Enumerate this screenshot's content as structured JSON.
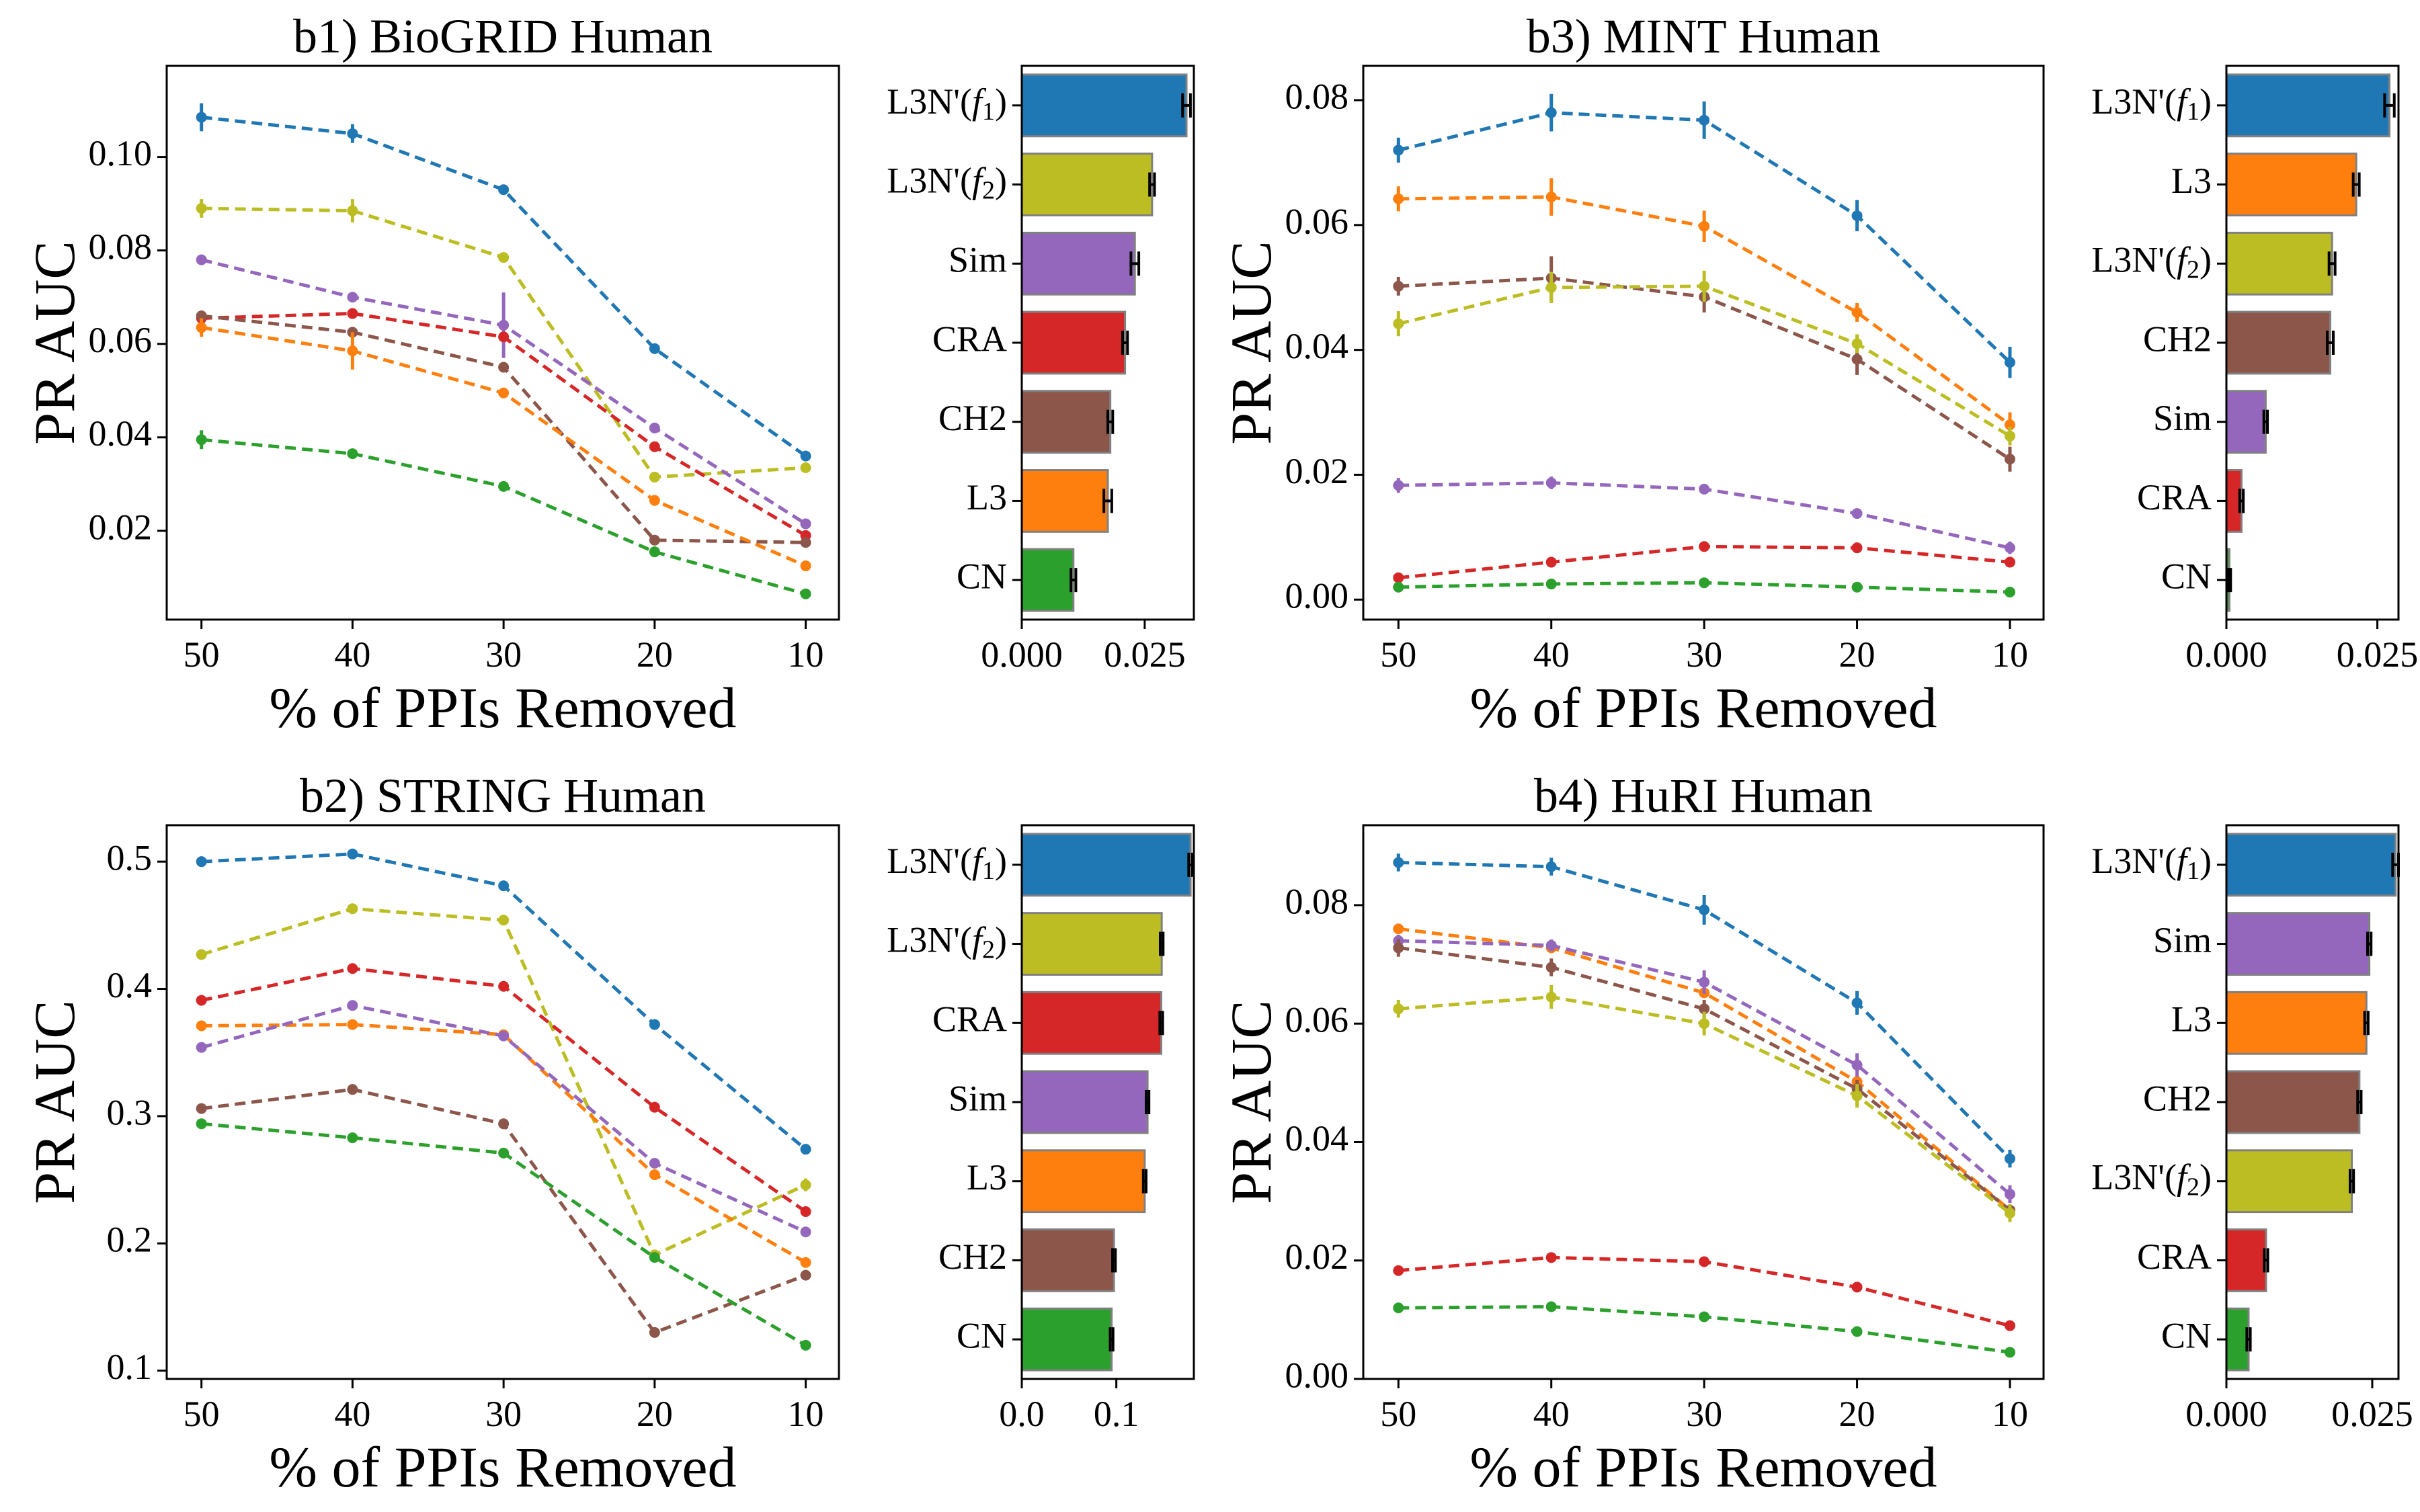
{
  "colors": {
    "L3N'(f1)": "#1f77b4",
    "L3": "#ff7f0e",
    "CN": "#2ca02c",
    "CRA": "#d62728",
    "Sim": "#9467bd",
    "CH2": "#8c564b",
    "L3N'(f2)": "#bcbd22"
  },
  "chart_data": [
    {
      "id": "b1",
      "type": "line",
      "title": "b1) BioGRID Human",
      "xlabel": "% of PPIs Removed",
      "ylabel": "PR AUC",
      "x": [
        50,
        40,
        30,
        20,
        10
      ],
      "xlim": [
        52.3,
        7.8
      ],
      "ylim": [
        0.001,
        0.1195
      ],
      "yticks": [
        0.02,
        0.04,
        0.06,
        0.08,
        0.1
      ],
      "ytick_labels": [
        "0.02",
        "0.04",
        "0.06",
        "0.08",
        "0.10"
      ],
      "series": [
        {
          "method": "L3N'(f1)",
          "values": [
            0.1085,
            0.105,
            0.093,
            0.059,
            0.036
          ],
          "errors": [
            0.003,
            0.002,
            0.001,
            0.0005,
            0.0005
          ]
        },
        {
          "method": "L3N'(f2)",
          "values": [
            0.089,
            0.0885,
            0.0785,
            0.0315,
            0.0335
          ],
          "errors": [
            0.002,
            0.0025,
            0.0005,
            0.0005,
            0.001
          ]
        },
        {
          "method": "Sim",
          "values": [
            0.078,
            0.07,
            0.064,
            0.042,
            0.0215
          ],
          "errors": [
            0.0005,
            0.0005,
            0.007,
            0.001,
            0.001
          ]
        },
        {
          "method": "CRA",
          "values": [
            0.0655,
            0.0665,
            0.0615,
            0.038,
            0.019
          ],
          "errors": [
            0.001,
            0.0005,
            0.0005,
            0.0005,
            0.0005
          ]
        },
        {
          "method": "CH2",
          "values": [
            0.066,
            0.0625,
            0.055,
            0.018,
            0.0175
          ],
          "errors": [
            0.0005,
            0.0005,
            0.0005,
            0.0005,
            0.0005
          ]
        },
        {
          "method": "L3",
          "values": [
            0.0635,
            0.0585,
            0.0495,
            0.0265,
            0.0125
          ],
          "errors": [
            0.002,
            0.004,
            0.0005,
            0.001,
            0.0005
          ]
        },
        {
          "method": "CN",
          "values": [
            0.0395,
            0.0365,
            0.0295,
            0.0155,
            0.0065
          ],
          "errors": [
            0.002,
            0.0005,
            0.0005,
            0.0005,
            0.0005
          ]
        }
      ]
    },
    {
      "id": "b1-bars",
      "type": "bar",
      "orientation": "horizontal",
      "categories": [
        "L3N'(f1)",
        "L3N'(f2)",
        "Sim",
        "CRA",
        "CH2",
        "L3",
        "CN"
      ],
      "values": [
        0.0335,
        0.0265,
        0.023,
        0.021,
        0.018,
        0.0175,
        0.0105
      ],
      "errors": [
        0.0008,
        0.0005,
        0.0008,
        0.0005,
        0.0005,
        0.0008,
        0.0005
      ],
      "xlim": [
        0,
        0.035
      ],
      "xticks": [
        0.0,
        0.025
      ],
      "xtick_labels": [
        "0.000",
        "0.025"
      ]
    },
    {
      "id": "b3",
      "type": "line",
      "title": "b3) MINT Human",
      "xlabel": "% of PPIs Removed",
      "ylabel": "PR AUC",
      "x": [
        50,
        40,
        30,
        20,
        10
      ],
      "xlim": [
        52.3,
        7.8
      ],
      "ylim": [
        -0.0032,
        0.0855
      ],
      "yticks": [
        0.0,
        0.02,
        0.04,
        0.06,
        0.08
      ],
      "ytick_labels": [
        "0.00",
        "0.02",
        "0.04",
        "0.06",
        "0.08"
      ],
      "series": [
        {
          "method": "L3N'(f1)",
          "values": [
            0.072,
            0.078,
            0.0768,
            0.0615,
            0.038
          ],
          "errors": [
            0.002,
            0.003,
            0.003,
            0.0025,
            0.0025
          ]
        },
        {
          "method": "L3",
          "values": [
            0.0642,
            0.0645,
            0.0598,
            0.046,
            0.028
          ],
          "errors": [
            0.002,
            0.003,
            0.0025,
            0.0015,
            0.002
          ]
        },
        {
          "method": "CH2",
          "values": [
            0.0502,
            0.0515,
            0.0485,
            0.0385,
            0.0225
          ],
          "errors": [
            0.0015,
            0.0035,
            0.0025,
            0.0025,
            0.002
          ]
        },
        {
          "method": "L3N'(f2)",
          "values": [
            0.0442,
            0.05,
            0.0502,
            0.041,
            0.0262
          ],
          "errors": [
            0.002,
            0.0025,
            0.0025,
            0.0015,
            0.0015
          ]
        },
        {
          "method": "Sim",
          "values": [
            0.0183,
            0.0187,
            0.0177,
            0.0138,
            0.0083
          ],
          "errors": [
            0.0012,
            0.001,
            0.0008,
            0.0008,
            0.001
          ]
        },
        {
          "method": "CRA",
          "values": [
            0.0035,
            0.006,
            0.0085,
            0.0083,
            0.006
          ],
          "errors": [
            0.0003,
            0.0003,
            0.0003,
            0.0003,
            0.0003
          ]
        },
        {
          "method": "CN",
          "values": [
            0.002,
            0.0025,
            0.0027,
            0.002,
            0.0012
          ],
          "errors": [
            0.0002,
            0.0002,
            0.0002,
            0.0002,
            0.0002
          ]
        }
      ]
    },
    {
      "id": "b3-bars",
      "type": "bar",
      "orientation": "horizontal",
      "categories": [
        "L3N'(f1)",
        "L3",
        "L3N'(f2)",
        "CH2",
        "Sim",
        "CRA",
        "CN"
      ],
      "values": [
        0.027,
        0.0215,
        0.0175,
        0.0172,
        0.0065,
        0.0025,
        0.0005
      ],
      "errors": [
        0.0008,
        0.0005,
        0.0005,
        0.0005,
        0.0003,
        0.0003,
        0.0002
      ],
      "xlim": [
        0,
        0.0285
      ],
      "xticks": [
        0.0,
        0.025
      ],
      "xtick_labels": [
        "0.000",
        "0.025"
      ]
    },
    {
      "id": "b2",
      "type": "line",
      "title": "b2) STRING Human",
      "xlabel": "% of PPIs Removed",
      "ylabel": "PR AUC",
      "x": [
        50,
        40,
        30,
        20,
        10
      ],
      "xlim": [
        52.3,
        7.8
      ],
      "ylim": [
        0.0935,
        0.5286
      ],
      "yticks": [
        0.1,
        0.2,
        0.3,
        0.4,
        0.5
      ],
      "ytick_labels": [
        "0.1",
        "0.2",
        "0.3",
        "0.4",
        "0.5"
      ],
      "series": [
        {
          "method": "L3N'(f1)",
          "values": [
            0.5,
            0.506,
            0.481,
            0.372,
            0.274
          ],
          "errors": [
            0.002,
            0.002,
            0.002,
            0.002,
            0.002
          ]
        },
        {
          "method": "L3N'(f2)",
          "values": [
            0.427,
            0.463,
            0.454,
            0.191,
            0.246
          ],
          "errors": [
            0.002,
            0.002,
            0.002,
            0.002,
            0.005
          ]
        },
        {
          "method": "CRA",
          "values": [
            0.391,
            0.416,
            0.402,
            0.307,
            0.225
          ],
          "errors": [
            0.002,
            0.002,
            0.002,
            0.002,
            0.002
          ]
        },
        {
          "method": "L3",
          "values": [
            0.371,
            0.372,
            0.364,
            0.254,
            0.185
          ],
          "errors": [
            0.002,
            0.002,
            0.002,
            0.002,
            0.002
          ]
        },
        {
          "method": "Sim",
          "values": [
            0.354,
            0.387,
            0.363,
            0.263,
            0.209
          ],
          "errors": [
            0.002,
            0.002,
            0.002,
            0.002,
            0.002
          ]
        },
        {
          "method": "CH2",
          "values": [
            0.306,
            0.321,
            0.294,
            0.13,
            0.175
          ],
          "errors": [
            0.002,
            0.002,
            0.002,
            0.002,
            0.002
          ]
        },
        {
          "method": "CN",
          "values": [
            0.294,
            0.283,
            0.271,
            0.189,
            0.12
          ],
          "errors": [
            0.002,
            0.002,
            0.002,
            0.002,
            0.002
          ]
        }
      ]
    },
    {
      "id": "b2-bars",
      "type": "bar",
      "orientation": "horizontal",
      "categories": [
        "L3N'(f1)",
        "L3N'(f2)",
        "CRA",
        "Sim",
        "L3",
        "CH2",
        "CN"
      ],
      "values": [
        0.1785,
        0.148,
        0.1475,
        0.133,
        0.13,
        0.0975,
        0.095
      ],
      "errors": [
        0.002,
        0.0015,
        0.0015,
        0.0015,
        0.0015,
        0.0015,
        0.0015
      ],
      "xlim": [
        0,
        0.182
      ],
      "xticks": [
        0.0,
        0.1
      ],
      "xtick_labels": [
        "0.0",
        "0.1"
      ]
    },
    {
      "id": "b4",
      "type": "line",
      "title": "b4) HuRI Human",
      "xlabel": "% of PPIs Removed",
      "ylabel": "PR AUC",
      "x": [
        50,
        40,
        30,
        20,
        10
      ],
      "xlim": [
        52.3,
        7.8
      ],
      "ylim": [
        0.0,
        0.0935
      ],
      "yticks": [
        0.0,
        0.02,
        0.04,
        0.06,
        0.08
      ],
      "ytick_labels": [
        "0.00",
        "0.02",
        "0.04",
        "0.06",
        "0.08"
      ],
      "series": [
        {
          "method": "L3N'(f1)",
          "values": [
            0.0872,
            0.0865,
            0.0792,
            0.0635,
            0.0372
          ],
          "errors": [
            0.0015,
            0.0015,
            0.0025,
            0.002,
            0.0015
          ]
        },
        {
          "method": "L3",
          "values": [
            0.076,
            0.0728,
            0.0652,
            0.0502,
            0.0285
          ],
          "errors": [
            0.0005,
            0.0005,
            0.0005,
            0.0005,
            0.0005
          ]
        },
        {
          "method": "Sim",
          "values": [
            0.074,
            0.0732,
            0.067,
            0.053,
            0.0312
          ],
          "errors": [
            0.001,
            0.001,
            0.002,
            0.002,
            0.0015
          ]
        },
        {
          "method": "CH2",
          "values": [
            0.0728,
            0.0695,
            0.0625,
            0.049,
            0.0285
          ],
          "errors": [
            0.0015,
            0.0015,
            0.0015,
            0.0015,
            0.001
          ]
        },
        {
          "method": "L3N'(f2)",
          "values": [
            0.0625,
            0.0645,
            0.06,
            0.0478,
            0.028
          ],
          "errors": [
            0.0015,
            0.002,
            0.002,
            0.002,
            0.0015
          ]
        },
        {
          "method": "CRA",
          "values": [
            0.0183,
            0.0205,
            0.0198,
            0.0155,
            0.009
          ],
          "errors": [
            0.0003,
            0.0003,
            0.0003,
            0.0003,
            0.0003
          ]
        },
        {
          "method": "CN",
          "values": [
            0.012,
            0.0122,
            0.0105,
            0.008,
            0.0045
          ],
          "errors": [
            0.0003,
            0.0003,
            0.0003,
            0.0003,
            0.0003
          ]
        }
      ]
    },
    {
      "id": "b4-bars",
      "type": "bar",
      "orientation": "horizontal",
      "categories": [
        "L3N'(f1)",
        "Sim",
        "L3",
        "CH2",
        "L3N'(f2)",
        "CRA",
        "CN"
      ],
      "values": [
        0.029,
        0.0245,
        0.024,
        0.0228,
        0.0215,
        0.0068,
        0.0038
      ],
      "errors": [
        0.0005,
        0.0003,
        0.0003,
        0.0003,
        0.0003,
        0.0003,
        0.0003
      ],
      "xlim": [
        0,
        0.0295
      ],
      "xticks": [
        0.0,
        0.025
      ],
      "xtick_labels": [
        "0.000",
        "0.025"
      ]
    }
  ]
}
